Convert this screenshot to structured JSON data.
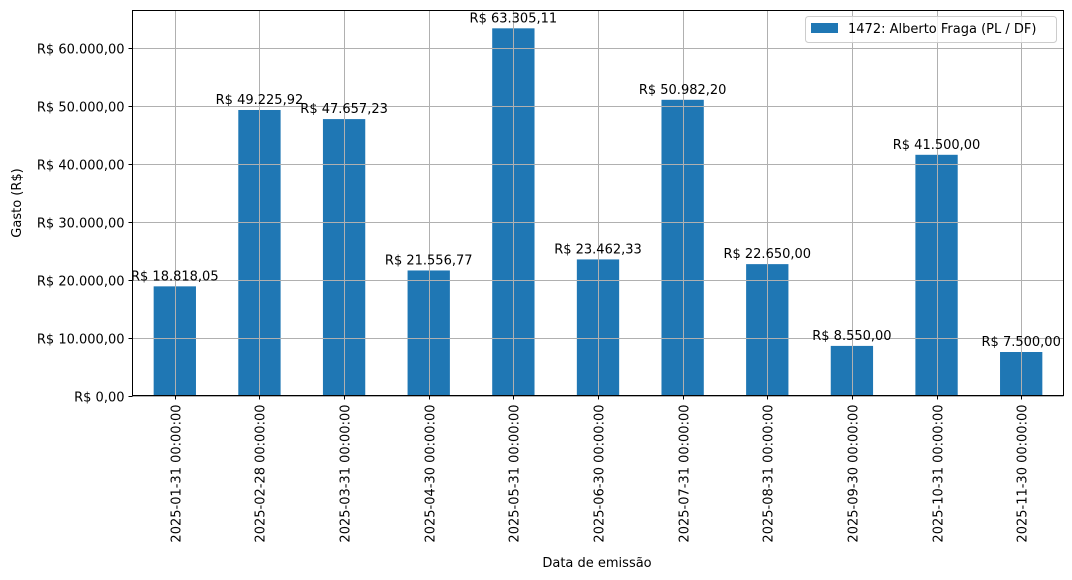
{
  "chart_data": {
    "type": "bar",
    "title": "",
    "xlabel": "Data de emissão",
    "ylabel": "Gasto (R$)",
    "ylim": [
      0,
      66470
    ],
    "grid": true,
    "legend_position": "upper right",
    "categories": [
      "2025-01-31 00:00:00",
      "2025-02-28 00:00:00",
      "2025-03-31 00:00:00",
      "2025-04-30 00:00:00",
      "2025-05-31 00:00:00",
      "2025-06-30 00:00:00",
      "2025-07-31 00:00:00",
      "2025-08-31 00:00:00",
      "2025-09-30 00:00:00",
      "2025-10-31 00:00:00",
      "2025-11-30 00:00:00"
    ],
    "series": [
      {
        "name": "1472: Alberto Fraga (PL / DF)",
        "color": "#1f77b4",
        "values": [
          18818.05,
          49225.92,
          47657.23,
          21556.77,
          63305.11,
          23462.33,
          50982.2,
          22650.0,
          8550.0,
          41500.0,
          7500.0
        ],
        "labels": [
          "R$ 18.818,05",
          "R$ 49.225,92",
          "R$ 47.657,23",
          "R$ 21.556,77",
          "R$ 63.305,11",
          "R$ 23.462,33",
          "R$ 50.982,20",
          "R$ 22.650,00",
          "R$ 8.550,00",
          "R$ 41.500,00",
          "R$ 7.500,00"
        ]
      }
    ],
    "yticks": [
      0,
      10000,
      20000,
      30000,
      40000,
      50000,
      60000
    ],
    "ytick_labels": [
      "R$ 0,00",
      "R$ 10.000,00",
      "R$ 20.000,00",
      "R$ 30.000,00",
      "R$ 40.000,00",
      "R$ 50.000,00",
      "R$ 60.000,00"
    ]
  },
  "colors": {
    "bar": "#1f77b4",
    "grid": "#b0b0b0",
    "axis": "#000000"
  }
}
